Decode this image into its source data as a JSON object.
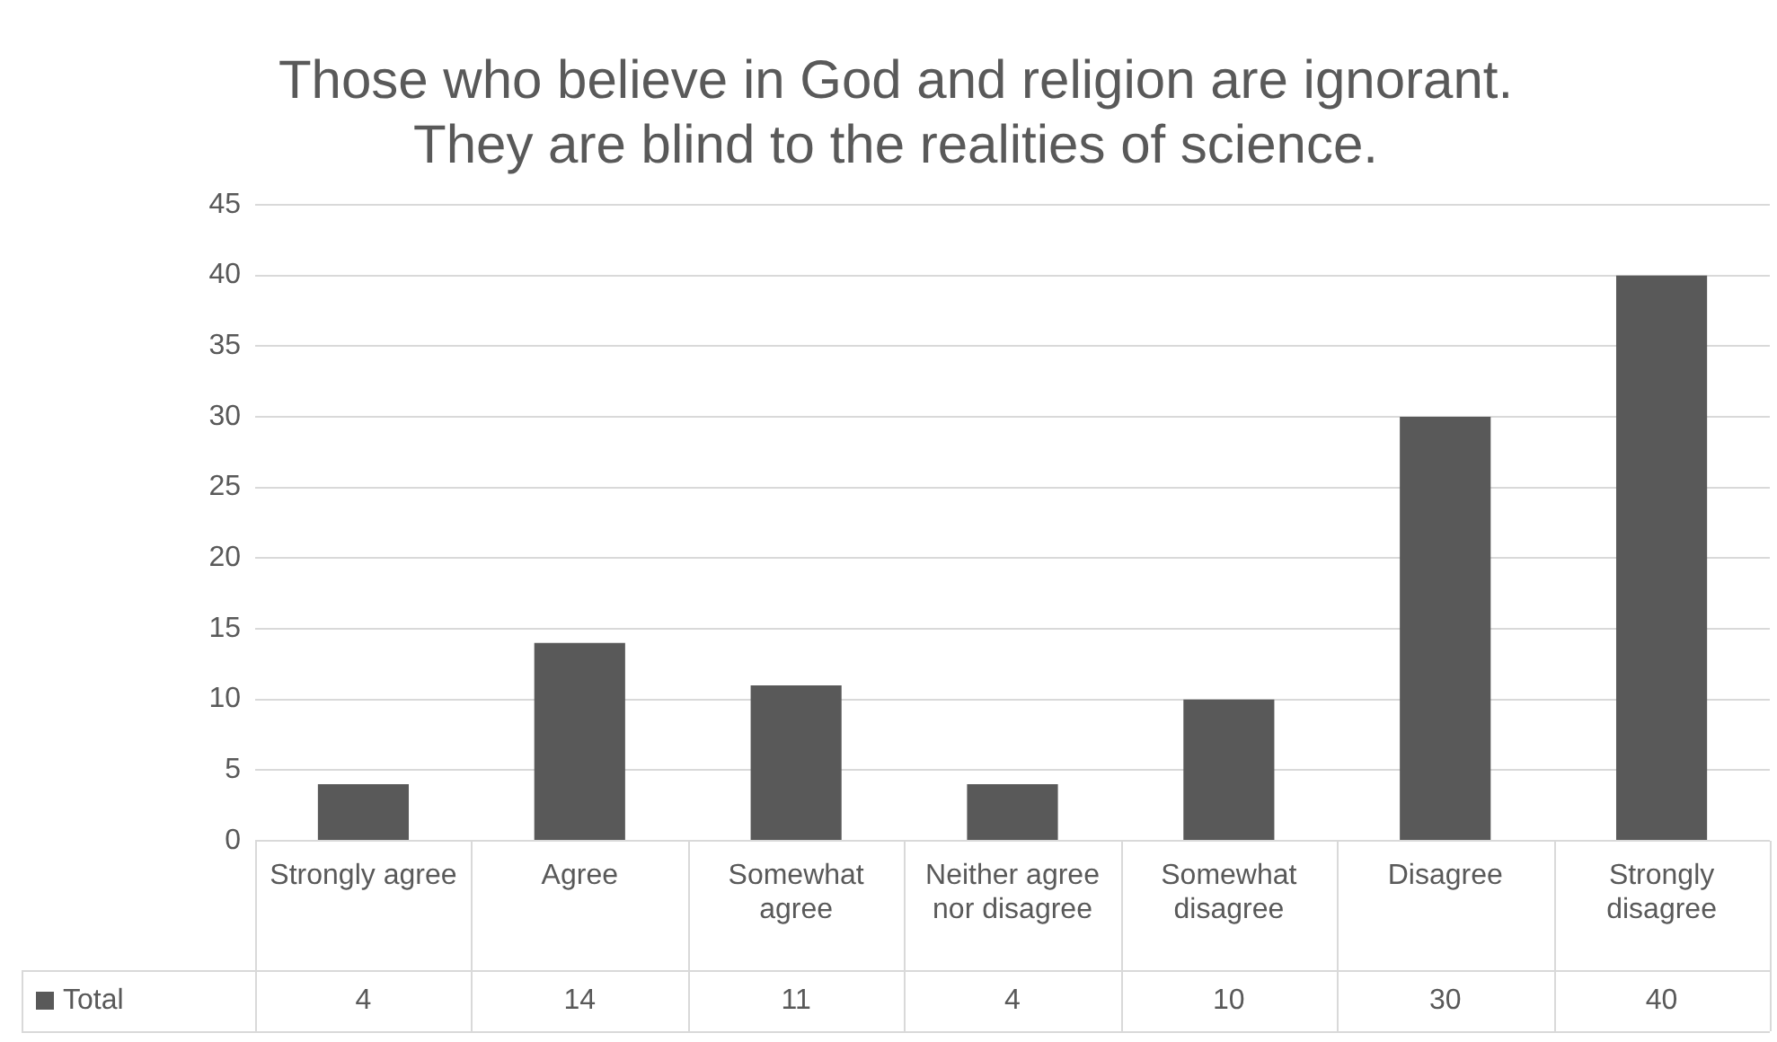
{
  "chart_data": {
    "type": "bar",
    "title": "Those who believe in God and religion are ignorant. They are blind to the realities of science.",
    "categories": [
      "Strongly agree",
      "Agree",
      "Somewhat agree",
      "Neither agree nor disagree",
      "Somewhat disagree",
      "Disagree",
      "Strongly disagree"
    ],
    "series": [
      {
        "name": "Total",
        "color": "#595959",
        "values": [
          4,
          14,
          11,
          4,
          10,
          30,
          40
        ]
      }
    ],
    "ylim": [
      0,
      45
    ],
    "yticks": [
      0,
      5,
      10,
      15,
      20,
      25,
      30,
      35,
      40,
      45
    ],
    "grid": "y",
    "legend": "bottom",
    "data_labels": true
  }
}
